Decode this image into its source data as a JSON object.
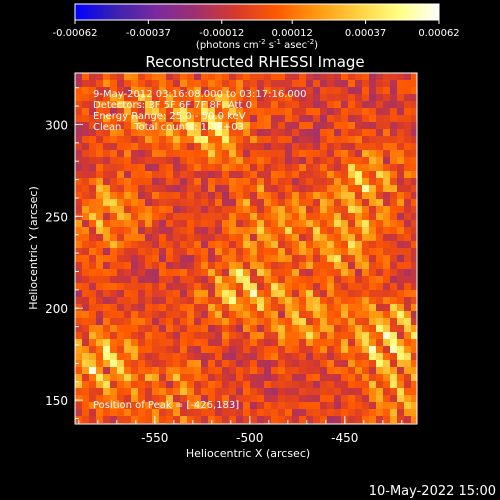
{
  "colorbar": {
    "tick_values": [
      -0.00062,
      -0.00037,
      -0.00012,
      0.00012,
      0.00037,
      0.00062
    ],
    "tick_labels": [
      "-0.00062",
      "-0.00037",
      "-0.00012",
      "0.00012",
      "0.00037",
      "0.00062"
    ],
    "unit_parts": [
      "(photons cm",
      "-2",
      " s",
      "-1",
      " asec",
      "-2",
      ")"
    ],
    "colors": [
      "#0000ff",
      "#3a22b0",
      "#7a2aa0",
      "#a0306e",
      "#d83a2a",
      "#ff5a00",
      "#ff9a10",
      "#ffd040",
      "#ffff80",
      "#ffffff"
    ]
  },
  "plot": {
    "title": "Reconstructed RHESSI Image",
    "annotations": [
      "9-May-2012 03:16:08.000 to 03:17:16.000",
      "Detectors: 3F 5F 6F 7F 8F, Att 0",
      "Energy Range: 25.0 - 50.0 keV",
      "Clean    Total counts: 1.3E+03"
    ],
    "peak_label": "Position of Peak = [-426,183]",
    "footer_timestamp": "10-May-2022 15:00"
  },
  "chart_data": {
    "type": "heatmap",
    "title": "Reconstructed RHESSI Image",
    "xlabel": "Heliocentric X (arcsec)",
    "ylabel": "Heliocentric Y (arcsec)",
    "xlim": [
      -592,
      -412
    ],
    "ylim": [
      137,
      328
    ],
    "x_ticks": [
      -550,
      -500,
      -450
    ],
    "y_ticks": [
      150,
      200,
      250,
      300
    ],
    "x_tick_labels": [
      "-550",
      "-500",
      "-450"
    ],
    "y_tick_labels": [
      "150",
      "200",
      "250",
      "300"
    ],
    "value_range": [
      -0.00062,
      0.00062
    ],
    "peak": [
      -426,
      183
    ],
    "hot_spots": [
      {
        "x": -520,
        "y": 300,
        "value": 0.0006
      },
      {
        "x": -440,
        "y": 268,
        "value": 0.00045
      },
      {
        "x": -426,
        "y": 183,
        "value": 0.00062
      },
      {
        "x": -580,
        "y": 170,
        "value": 0.00055
      },
      {
        "x": -505,
        "y": 210,
        "value": 0.0005
      },
      {
        "x": -450,
        "y": 235,
        "value": 0.0004
      },
      {
        "x": -575,
        "y": 250,
        "value": 0.00042
      },
      {
        "x": -470,
        "y": 195,
        "value": 0.0004
      },
      {
        "x": -560,
        "y": 310,
        "value": 0.00035
      },
      {
        "x": -540,
        "y": 155,
        "value": 0.0003
      },
      {
        "x": -490,
        "y": 250,
        "value": 0.00038
      },
      {
        "x": -420,
        "y": 150,
        "value": 0.00035
      }
    ]
  }
}
